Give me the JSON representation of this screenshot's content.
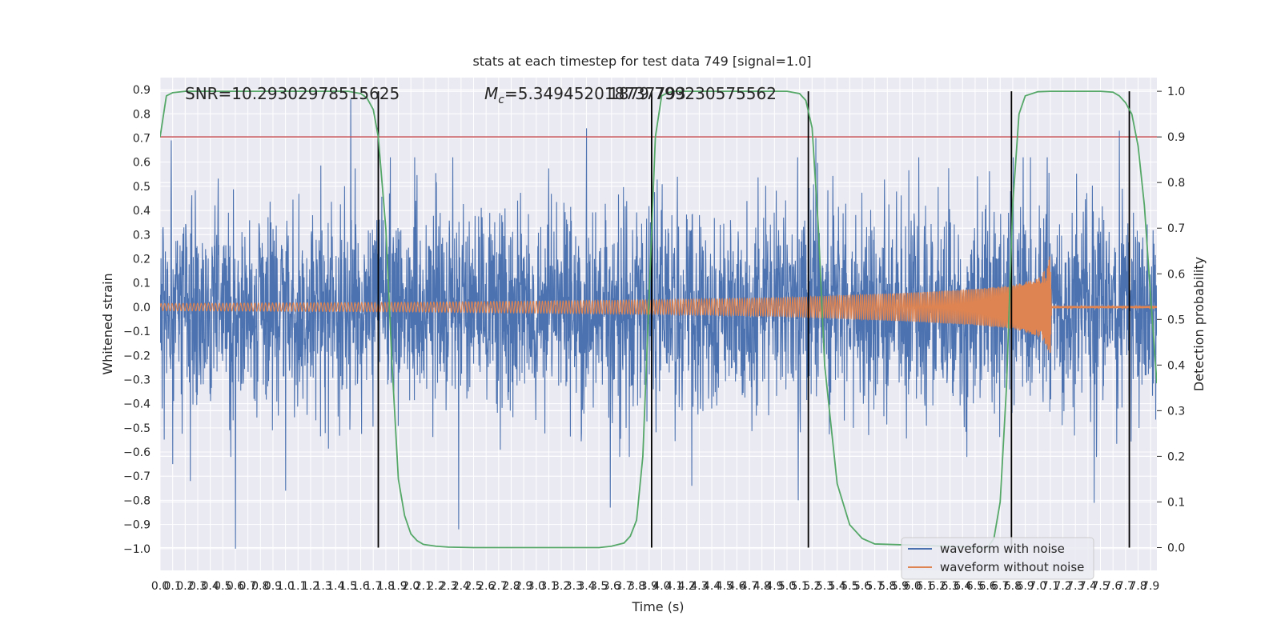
{
  "chart_data": {
    "type": "line",
    "title": "stats at each timestep for test data 749 [signal=1.0]",
    "xlabel": "Time (s)",
    "ylabel_left": "Whitened strain",
    "ylabel_right": "Detection probability",
    "xlim": [
      0.0,
      7.95
    ],
    "ylim_left": [
      -1.09,
      0.95
    ],
    "ylim_right": [
      -0.05,
      1.03
    ],
    "x_ticks": [
      0.0,
      0.1,
      0.2,
      0.3,
      0.4,
      0.5,
      0.6,
      0.7,
      0.8,
      0.9,
      1.0,
      1.1,
      1.2,
      1.3,
      1.4,
      1.5,
      1.6,
      1.7,
      1.8,
      1.9,
      2.0,
      2.1,
      2.2,
      2.3,
      2.4,
      2.5,
      2.6,
      2.7,
      2.8,
      2.9,
      3.0,
      3.1,
      3.2,
      3.3,
      3.4,
      3.5,
      3.6,
      3.7,
      3.8,
      3.9,
      4.0,
      4.1,
      4.2,
      4.3,
      4.4,
      4.5,
      4.6,
      4.7,
      4.8,
      4.9,
      5.0,
      5.1,
      5.2,
      5.3,
      5.4,
      5.5,
      5.6,
      5.7,
      5.8,
      5.9,
      6.0,
      6.1,
      6.2,
      6.3,
      6.4,
      6.5,
      6.6,
      6.7,
      6.8,
      6.9,
      7.0,
      7.1,
      7.2,
      7.3,
      7.4,
      7.5,
      7.6,
      7.7,
      7.8,
      7.9
    ],
    "y_ticks_left": [
      -1.0,
      -0.9,
      -0.8,
      -0.7,
      -0.6,
      -0.5,
      -0.4,
      -0.3,
      -0.2,
      -0.1,
      0.0,
      0.1,
      0.2,
      0.3,
      0.4,
      0.5,
      0.6,
      0.7,
      0.8,
      0.9
    ],
    "y_ticks_right": [
      0.0,
      0.1,
      0.2,
      0.3,
      0.4,
      0.5,
      0.6,
      0.7,
      0.8,
      0.9,
      1.0
    ],
    "annotations": [
      "SNR=10.29302978515625",
      "M_c=5.349452018737793",
      "1879.799230575562"
    ],
    "threshold": 0.9,
    "threshold_color": "#c44e52",
    "vertical_lines_x": [
      1.74,
      3.92,
      5.17,
      6.79,
      7.73
    ],
    "vertical_lines_color": "#000000",
    "series": [
      {
        "name": "waveform with noise",
        "color": "#4c72b0",
        "axis": "left",
        "envelope_typical": 0.3,
        "peak_values": [
          {
            "x": 0.09,
            "y": 0.69
          },
          {
            "x": 0.1,
            "y": -0.65
          },
          {
            "x": 0.24,
            "y": -0.72
          },
          {
            "x": 0.6,
            "y": -1.0
          },
          {
            "x": 1.0,
            "y": -0.76
          },
          {
            "x": 1.52,
            "y": 0.86
          },
          {
            "x": 2.38,
            "y": -0.92
          },
          {
            "x": 3.4,
            "y": 0.74
          },
          {
            "x": 3.59,
            "y": -0.83
          },
          {
            "x": 4.24,
            "y": -0.74
          },
          {
            "x": 5.09,
            "y": -0.8
          },
          {
            "x": 5.23,
            "y": 0.7
          },
          {
            "x": 7.45,
            "y": -0.81
          },
          {
            "x": 7.65,
            "y": 0.73
          }
        ]
      },
      {
        "name": "waveform without noise",
        "color": "#dd8452",
        "axis": "left",
        "amplitude_envelope": [
          [
            0.0,
            0.015
          ],
          [
            2.0,
            0.02
          ],
          [
            4.0,
            0.03
          ],
          [
            5.0,
            0.04
          ],
          [
            6.0,
            0.06
          ],
          [
            6.5,
            0.075
          ],
          [
            6.8,
            0.09
          ],
          [
            7.0,
            0.12
          ],
          [
            7.07,
            0.16
          ],
          [
            7.1,
            0.22
          ],
          [
            7.11,
            0.005
          ],
          [
            7.95,
            0.005
          ]
        ],
        "merger_time": 7.1
      },
      {
        "name": "detection probability",
        "color": "#55a868",
        "axis": "right",
        "x": [
          0.0,
          0.05,
          0.1,
          0.2,
          1.5,
          1.6,
          1.65,
          1.7,
          1.74,
          1.8,
          1.85,
          1.9,
          1.95,
          2.0,
          2.05,
          2.1,
          2.2,
          2.3,
          2.5,
          3.5,
          3.6,
          3.7,
          3.75,
          3.8,
          3.85,
          3.9,
          3.95,
          4.0,
          4.05,
          4.1,
          4.2,
          5.0,
          5.1,
          5.15,
          5.2,
          5.25,
          5.3,
          5.4,
          5.5,
          5.6,
          5.7,
          6.6,
          6.65,
          6.7,
          6.75,
          6.8,
          6.85,
          6.9,
          7.0,
          7.1,
          7.5,
          7.6,
          7.65,
          7.7,
          7.75,
          7.8,
          7.85,
          7.9,
          7.95
        ],
        "y": [
          0.9,
          0.99,
          0.997,
          1.0,
          1.0,
          0.995,
          0.985,
          0.96,
          0.9,
          0.7,
          0.4,
          0.15,
          0.07,
          0.03,
          0.015,
          0.007,
          0.003,
          0.001,
          0.0,
          0.0,
          0.003,
          0.01,
          0.025,
          0.06,
          0.2,
          0.55,
          0.9,
          0.99,
          0.997,
          1.0,
          1.0,
          1.0,
          0.995,
          0.98,
          0.92,
          0.7,
          0.4,
          0.14,
          0.05,
          0.02,
          0.008,
          0.0,
          0.02,
          0.1,
          0.35,
          0.75,
          0.95,
          0.99,
          0.999,
          1.0,
          1.0,
          0.998,
          0.99,
          0.975,
          0.95,
          0.88,
          0.75,
          0.55,
          0.36
        ]
      }
    ],
    "legend": {
      "placement": "lower-right",
      "entries": [
        {
          "label": "waveform with noise",
          "color": "#4c72b0"
        },
        {
          "label": "waveform without noise",
          "color": "#dd8452"
        }
      ]
    },
    "grid": true,
    "background_color": "#eaeaf2",
    "grid_color": "#ffffff"
  }
}
